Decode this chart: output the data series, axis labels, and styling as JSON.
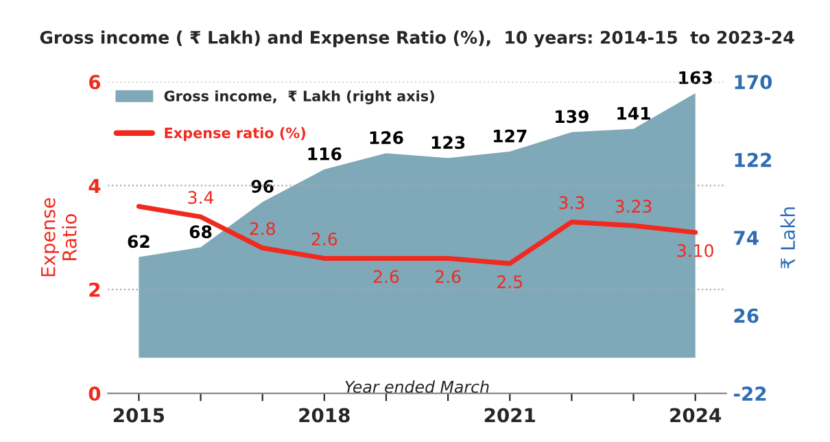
{
  "chart_data": {
    "type": "line",
    "title": "Gross income ( ₹ Lakh) and Expense Ratio (%),  10 years: 2014-15  to 2023-24",
    "xlabel": "Year ended March",
    "ylabel": "Expense\nRatio",
    "y2label": "₹ Lakh",
    "x": [
      2015,
      2016,
      2017,
      2018,
      2019,
      2020,
      2021,
      2022,
      2023,
      2024
    ],
    "xlim": [
      2014.5,
      2024.5
    ],
    "xticks": [
      2015,
      {
        "value": 2016,
        "label": null
      },
      {
        "value": 2017,
        "label": null
      },
      2018,
      {
        "value": 2019,
        "label": null
      },
      {
        "value": 2020,
        "label": null
      },
      2021,
      {
        "value": 2022,
        "label": null
      },
      {
        "value": 2023,
        "label": null
      },
      2024
    ],
    "ylim": [
      0,
      6
    ],
    "yticks": [
      0,
      2,
      4,
      6
    ],
    "y2lim": [
      -22,
      170
    ],
    "y2ticks": [
      -22,
      26,
      74,
      122,
      170
    ],
    "grid": "y",
    "legend": "top left",
    "series": [
      {
        "name": "Gross income,  ₹ Lakh (right axis)",
        "type": "area",
        "axis": "y2",
        "color": "#7fa8b8",
        "values": [
          62,
          68,
          96,
          116,
          126,
          123,
          127,
          139,
          141,
          163
        ],
        "value_labels": [
          "62",
          "68",
          "96",
          "116",
          "126",
          "123",
          "127",
          "139",
          "141",
          "163"
        ]
      },
      {
        "name": "Expense ratio (%)",
        "color": "#f02a1e",
        "values": [
          3.6,
          3.4,
          2.8,
          2.6,
          2.6,
          2.6,
          2.5,
          3.3,
          3.23,
          3.1
        ],
        "value_labels": [
          null,
          "3.4",
          "2.8",
          "2.6",
          "2.6",
          "2.6",
          "2.5",
          "3.3",
          "3.23",
          "3.10"
        ]
      }
    ]
  }
}
